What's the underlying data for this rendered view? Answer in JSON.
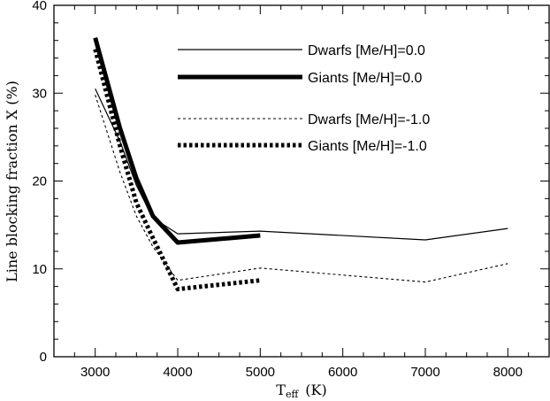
{
  "chart_data": {
    "type": "line",
    "xlabel": "T",
    "xlabel_sub": "eff",
    "xlabel_unit": "(K)",
    "ylabel": "Line blocking fraction X (%)",
    "xlim": [
      2500,
      8500
    ],
    "ylim": [
      0,
      40
    ],
    "xticks": [
      3000,
      4000,
      5000,
      6000,
      7000,
      8000
    ],
    "yticks": [
      0,
      10,
      20,
      30,
      40
    ],
    "x_minor_step": 250,
    "y_minor_step": 2,
    "grid": false,
    "legend_position": "top-center",
    "series": [
      {
        "name": "Dwarfs [Me/H]=0.0",
        "style": "thin-solid",
        "x": [
          3000,
          3300,
          3500,
          3700,
          4000,
          5000,
          7000,
          8000
        ],
        "y": [
          30.5,
          24.5,
          19.5,
          15.8,
          14.0,
          14.3,
          13.3,
          14.6
        ]
      },
      {
        "name": "Giants [Me/H]=0.0",
        "style": "thick-solid",
        "x": [
          3000,
          3300,
          3500,
          3700,
          4000,
          5000
        ],
        "y": [
          36.3,
          26.0,
          20.3,
          16.0,
          13.0,
          13.8
        ]
      },
      {
        "name": "Dwarfs [Me/H]=-1.0",
        "style": "thin-dashed",
        "x": [
          3000,
          3300,
          3500,
          3700,
          4000,
          5000,
          7000,
          8000
        ],
        "y": [
          29.8,
          21.0,
          16.0,
          12.5,
          8.7,
          10.1,
          8.5,
          10.6
        ]
      },
      {
        "name": "Giants [Me/H]=-1.0",
        "style": "thick-dotted",
        "x": [
          3000,
          3300,
          3500,
          3700,
          4000,
          5000
        ],
        "y": [
          35.0,
          24.0,
          17.5,
          13.5,
          7.7,
          8.7
        ]
      }
    ]
  }
}
